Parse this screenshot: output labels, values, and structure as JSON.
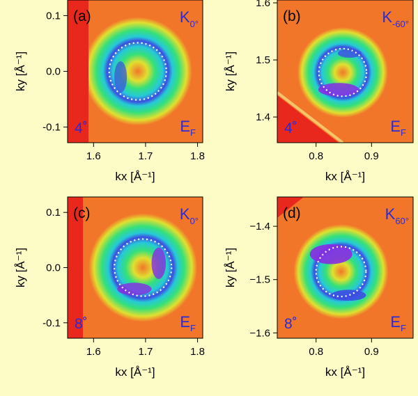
{
  "chart_data": [
    {
      "type": "heatmap",
      "panel_label": "(a)",
      "k_point": "K",
      "k_angle": "0°",
      "tilt": "4˚",
      "energy_label": "E",
      "energy_sub": "F",
      "xlabel": "kx [Å⁻¹]",
      "ylabel": "ky [Å⁻¹]",
      "xlim": [
        1.55,
        1.81
      ],
      "ylim": [
        -0.128,
        0.128
      ],
      "xticks": [
        1.6,
        1.7,
        1.8
      ],
      "yticks": [
        0.1,
        0.0,
        -0.1
      ],
      "xtick_labels": [
        "1.6",
        "1.7",
        "1.8"
      ],
      "ytick_labels": [
        "0.1",
        "0.0",
        "-0.1"
      ],
      "pocket_center": [
        1.685,
        0.0
      ],
      "dotted_circle_radius": 0.055
    },
    {
      "type": "heatmap",
      "panel_label": "(b)",
      "k_point": "K",
      "k_angle": "-60°",
      "tilt": "4˚",
      "energy_label": "E",
      "energy_sub": "F",
      "xlabel": "kx [Å⁻¹]",
      "ylabel": "ky [Å⁻¹]",
      "xlim": [
        0.73,
        0.975
      ],
      "ylim": [
        1.355,
        1.605
      ],
      "xticks": [
        0.8,
        0.9
      ],
      "yticks": [
        1.6,
        1.5,
        1.4
      ],
      "xtick_labels": [
        "0.8",
        "0.9"
      ],
      "ytick_labels": [
        "1.6",
        "1.5",
        "1.4"
      ],
      "pocket_center": [
        0.848,
        1.478
      ],
      "dotted_circle_radius": 0.043
    },
    {
      "type": "heatmap",
      "panel_label": "(c)",
      "k_point": "K",
      "k_angle": "0°",
      "tilt": "8˚",
      "energy_label": "E",
      "energy_sub": "F",
      "xlabel": "kx [Å⁻¹]",
      "ylabel": "ky [Å⁻¹]",
      "xlim": [
        1.55,
        1.81
      ],
      "ylim": [
        -0.128,
        0.128
      ],
      "xticks": [
        1.6,
        1.7,
        1.8
      ],
      "yticks": [
        0.1,
        0.0,
        -0.1
      ],
      "xtick_labels": [
        "1.6",
        "1.7",
        "1.8"
      ],
      "ytick_labels": [
        "0.1",
        "0.0",
        "-0.1"
      ],
      "pocket_center": [
        1.695,
        0.0
      ],
      "dotted_circle_radius": 0.055
    },
    {
      "type": "heatmap",
      "panel_label": "(d)",
      "k_point": "K",
      "k_angle": "60°",
      "tilt": "8˚",
      "energy_label": "E",
      "energy_sub": "F",
      "xlabel": "kx [Å⁻¹]",
      "ylabel": "ky [Å⁻¹]",
      "xlim": [
        0.73,
        0.975
      ],
      "ylim": [
        -1.61,
        -1.345
      ],
      "xticks": [
        0.8,
        0.9
      ],
      "yticks": [
        -1.4,
        -1.5,
        -1.6
      ],
      "xtick_labels": [
        "0.8",
        "0.9"
      ],
      "ytick_labels": [
        "−1.4",
        "−1.5",
        "−1.6"
      ],
      "pocket_center": [
        0.845,
        -1.485
      ],
      "dotted_circle_radius": 0.045
    }
  ],
  "colors": {
    "background": "#fdfbc6",
    "map_red": "#e8281c",
    "map_orange": "#f2762a",
    "map_yellow": "#e0e030",
    "map_green": "#35e07a",
    "map_cyan": "#26c9d8",
    "map_blue": "#3d4de0",
    "map_purple": "#8a2be2",
    "label_blue": "#2a2bd6"
  }
}
